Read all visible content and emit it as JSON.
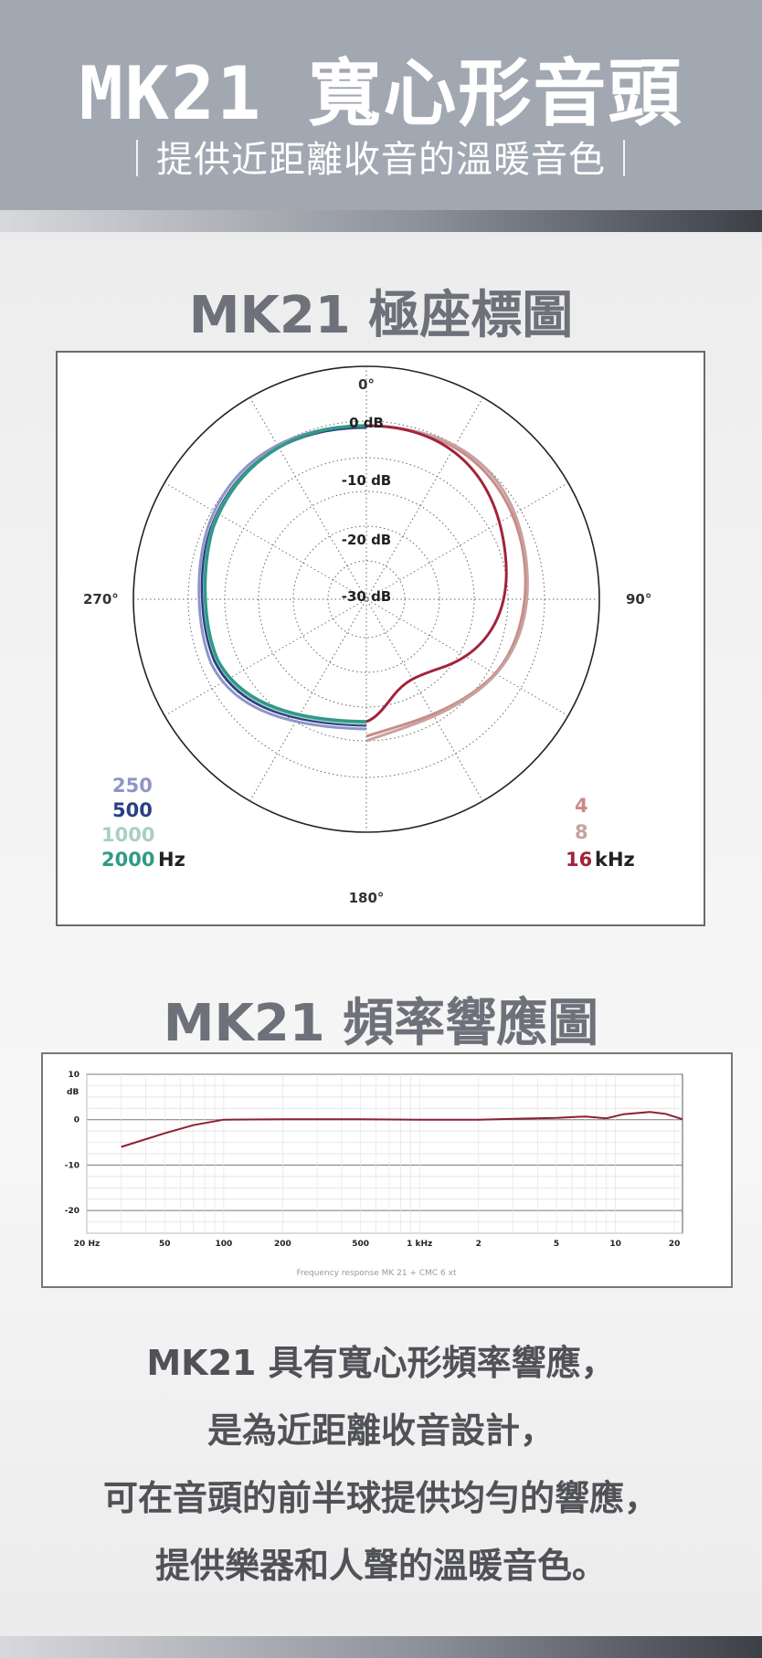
{
  "header": {
    "title_model": "MK21",
    "title_zh": "寬心形音頭",
    "subtitle": "｜提供近距離收音的溫暖音色｜"
  },
  "polar": {
    "section_title": "MK21 極座標圖",
    "angle_labels": {
      "top": "0°",
      "right": "90°",
      "bottom": "180°",
      "left": "270°"
    },
    "db_labels": [
      "0 dB",
      "-10 dB",
      "-20 dB",
      "-30 dB"
    ],
    "legend_left": [
      {
        "label": "250",
        "color": "#8f95c6"
      },
      {
        "label": "500",
        "color": "#2a3f86"
      },
      {
        "label": "1000",
        "color": "#a8cfc4"
      },
      {
        "label": "2000",
        "color": "#2f9a86"
      }
    ],
    "legend_left_unit": "Hz",
    "legend_right": [
      {
        "label": "4",
        "color": "#c98a86"
      },
      {
        "label": "8",
        "color": "#c7a2a0"
      },
      {
        "label": "16",
        "color": "#a2233a"
      }
    ],
    "legend_right_unit": "kHz"
  },
  "freq": {
    "section_title": "MK21 頻率響應圖",
    "y_ticks": [
      "10",
      "0",
      "-10",
      "-20"
    ],
    "y_unit": "dB",
    "x_ticks": [
      "20 Hz",
      "50",
      "100",
      "200",
      "500",
      "1 kHz",
      "2",
      "5",
      "10",
      "20"
    ],
    "caption": "Frequency response MK 21 + CMC 6 xt",
    "curve_color": "#8c1f33"
  },
  "chart_data": {
    "type": "line",
    "xlabel": "",
    "ylabel": "dB",
    "x": [
      30,
      50,
      70,
      100,
      200,
      500,
      1000,
      2000,
      3000,
      5000,
      7000,
      9000,
      11000,
      15000,
      18000,
      22000
    ],
    "series": [
      {
        "values": [
          -6,
          -3,
          -1.2,
          0,
          0.1,
          0.1,
          0,
          0,
          0.2,
          0.4,
          0.7,
          0.3,
          1.2,
          1.7,
          1.3,
          0.1
        ]
      }
    ],
    "ylim": [
      -25,
      10
    ],
    "xlim": [
      20,
      22000
    ],
    "x_scale": "log",
    "grid": true
  },
  "description": {
    "lines": [
      "MK21 具有寬心形頻率響應，",
      "是為近距離收音設計，",
      "可在音頭的前半球提供均勻的響應，",
      "提供樂器和人聲的溫暖音色。"
    ]
  }
}
